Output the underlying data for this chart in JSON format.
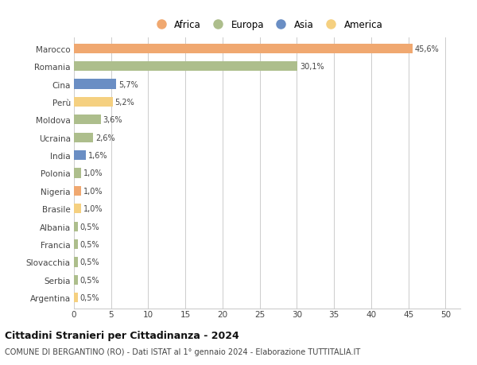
{
  "countries": [
    "Marocco",
    "Romania",
    "Cina",
    "Perù",
    "Moldova",
    "Ucraina",
    "India",
    "Polonia",
    "Nigeria",
    "Brasile",
    "Albania",
    "Francia",
    "Slovacchia",
    "Serbia",
    "Argentina"
  ],
  "values": [
    45.6,
    30.1,
    5.7,
    5.2,
    3.6,
    2.6,
    1.6,
    1.0,
    1.0,
    1.0,
    0.5,
    0.5,
    0.5,
    0.5,
    0.5
  ],
  "labels": [
    "45,6%",
    "30,1%",
    "5,7%",
    "5,2%",
    "3,6%",
    "2,6%",
    "1,6%",
    "1,0%",
    "1,0%",
    "1,0%",
    "0,5%",
    "0,5%",
    "0,5%",
    "0,5%",
    "0,5%"
  ],
  "continents": [
    "Africa",
    "Europa",
    "Asia",
    "America",
    "Europa",
    "Europa",
    "Asia",
    "Europa",
    "Africa",
    "America",
    "Europa",
    "Europa",
    "Europa",
    "Europa",
    "America"
  ],
  "colors": {
    "Africa": "#F0A870",
    "Europa": "#ADBE8C",
    "Asia": "#6A8EC4",
    "America": "#F5D080"
  },
  "legend_order": [
    "Africa",
    "Europa",
    "Asia",
    "America"
  ],
  "title": "Cittadini Stranieri per Cittadinanza - 2024",
  "subtitle": "COMUNE DI BERGANTINO (RO) - Dati ISTAT al 1° gennaio 2024 - Elaborazione TUTTITALIA.IT",
  "xlabel_ticks": [
    0,
    5,
    10,
    15,
    20,
    25,
    30,
    35,
    40,
    45,
    50
  ],
  "xlim": [
    0,
    52
  ],
  "background_color": "#ffffff",
  "grid_color": "#cccccc",
  "bar_height": 0.55
}
